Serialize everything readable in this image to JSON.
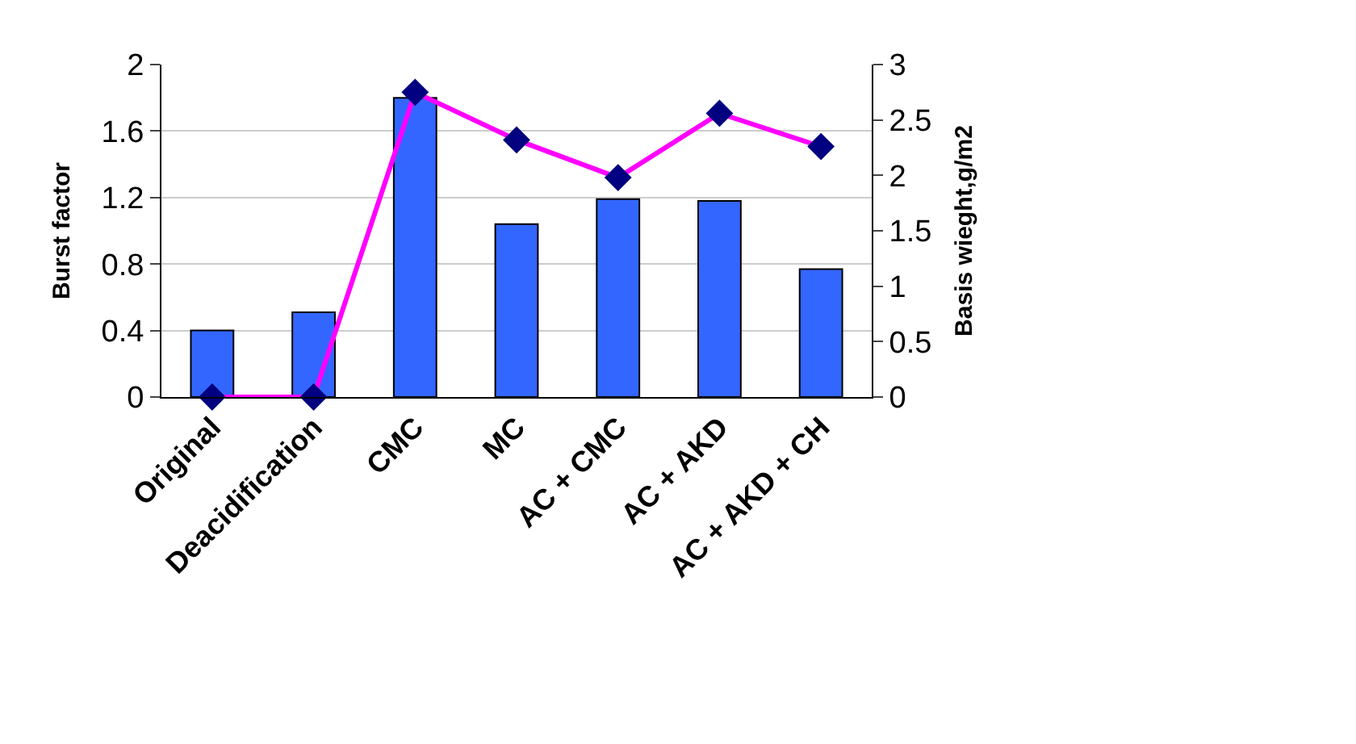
{
  "chart_data": {
    "type": "bar",
    "categories": [
      "Original",
      "Deacidification",
      "CMC",
      "MC",
      "AC + CMC",
      "AC + AKD",
      "AC + AKD + CH"
    ],
    "series": [
      {
        "color": "#3366ff",
        "values": [
          0.4,
          0.51,
          1.8,
          1.04,
          1.19,
          1.18,
          0.77
        ]
      },
      {
        "type": "line",
        "axis": "y2",
        "color": "#ff00ff",
        "marker": "diamond",
        "values": [
          0,
          0,
          2.75,
          2.32,
          1.98,
          2.56,
          2.26
        ]
      }
    ],
    "ylabel": "Burst factor",
    "y2label": "Basis wieght,g/m2",
    "ylim": [
      0,
      2
    ],
    "yticks": [
      0,
      0.4,
      0.8,
      1.2,
      1.6,
      2
    ],
    "y2lim": [
      0,
      3
    ],
    "y2ticks": [
      0,
      0.5,
      1,
      1.5,
      2,
      2.5,
      3
    ],
    "grid": "y",
    "legend": false
  }
}
